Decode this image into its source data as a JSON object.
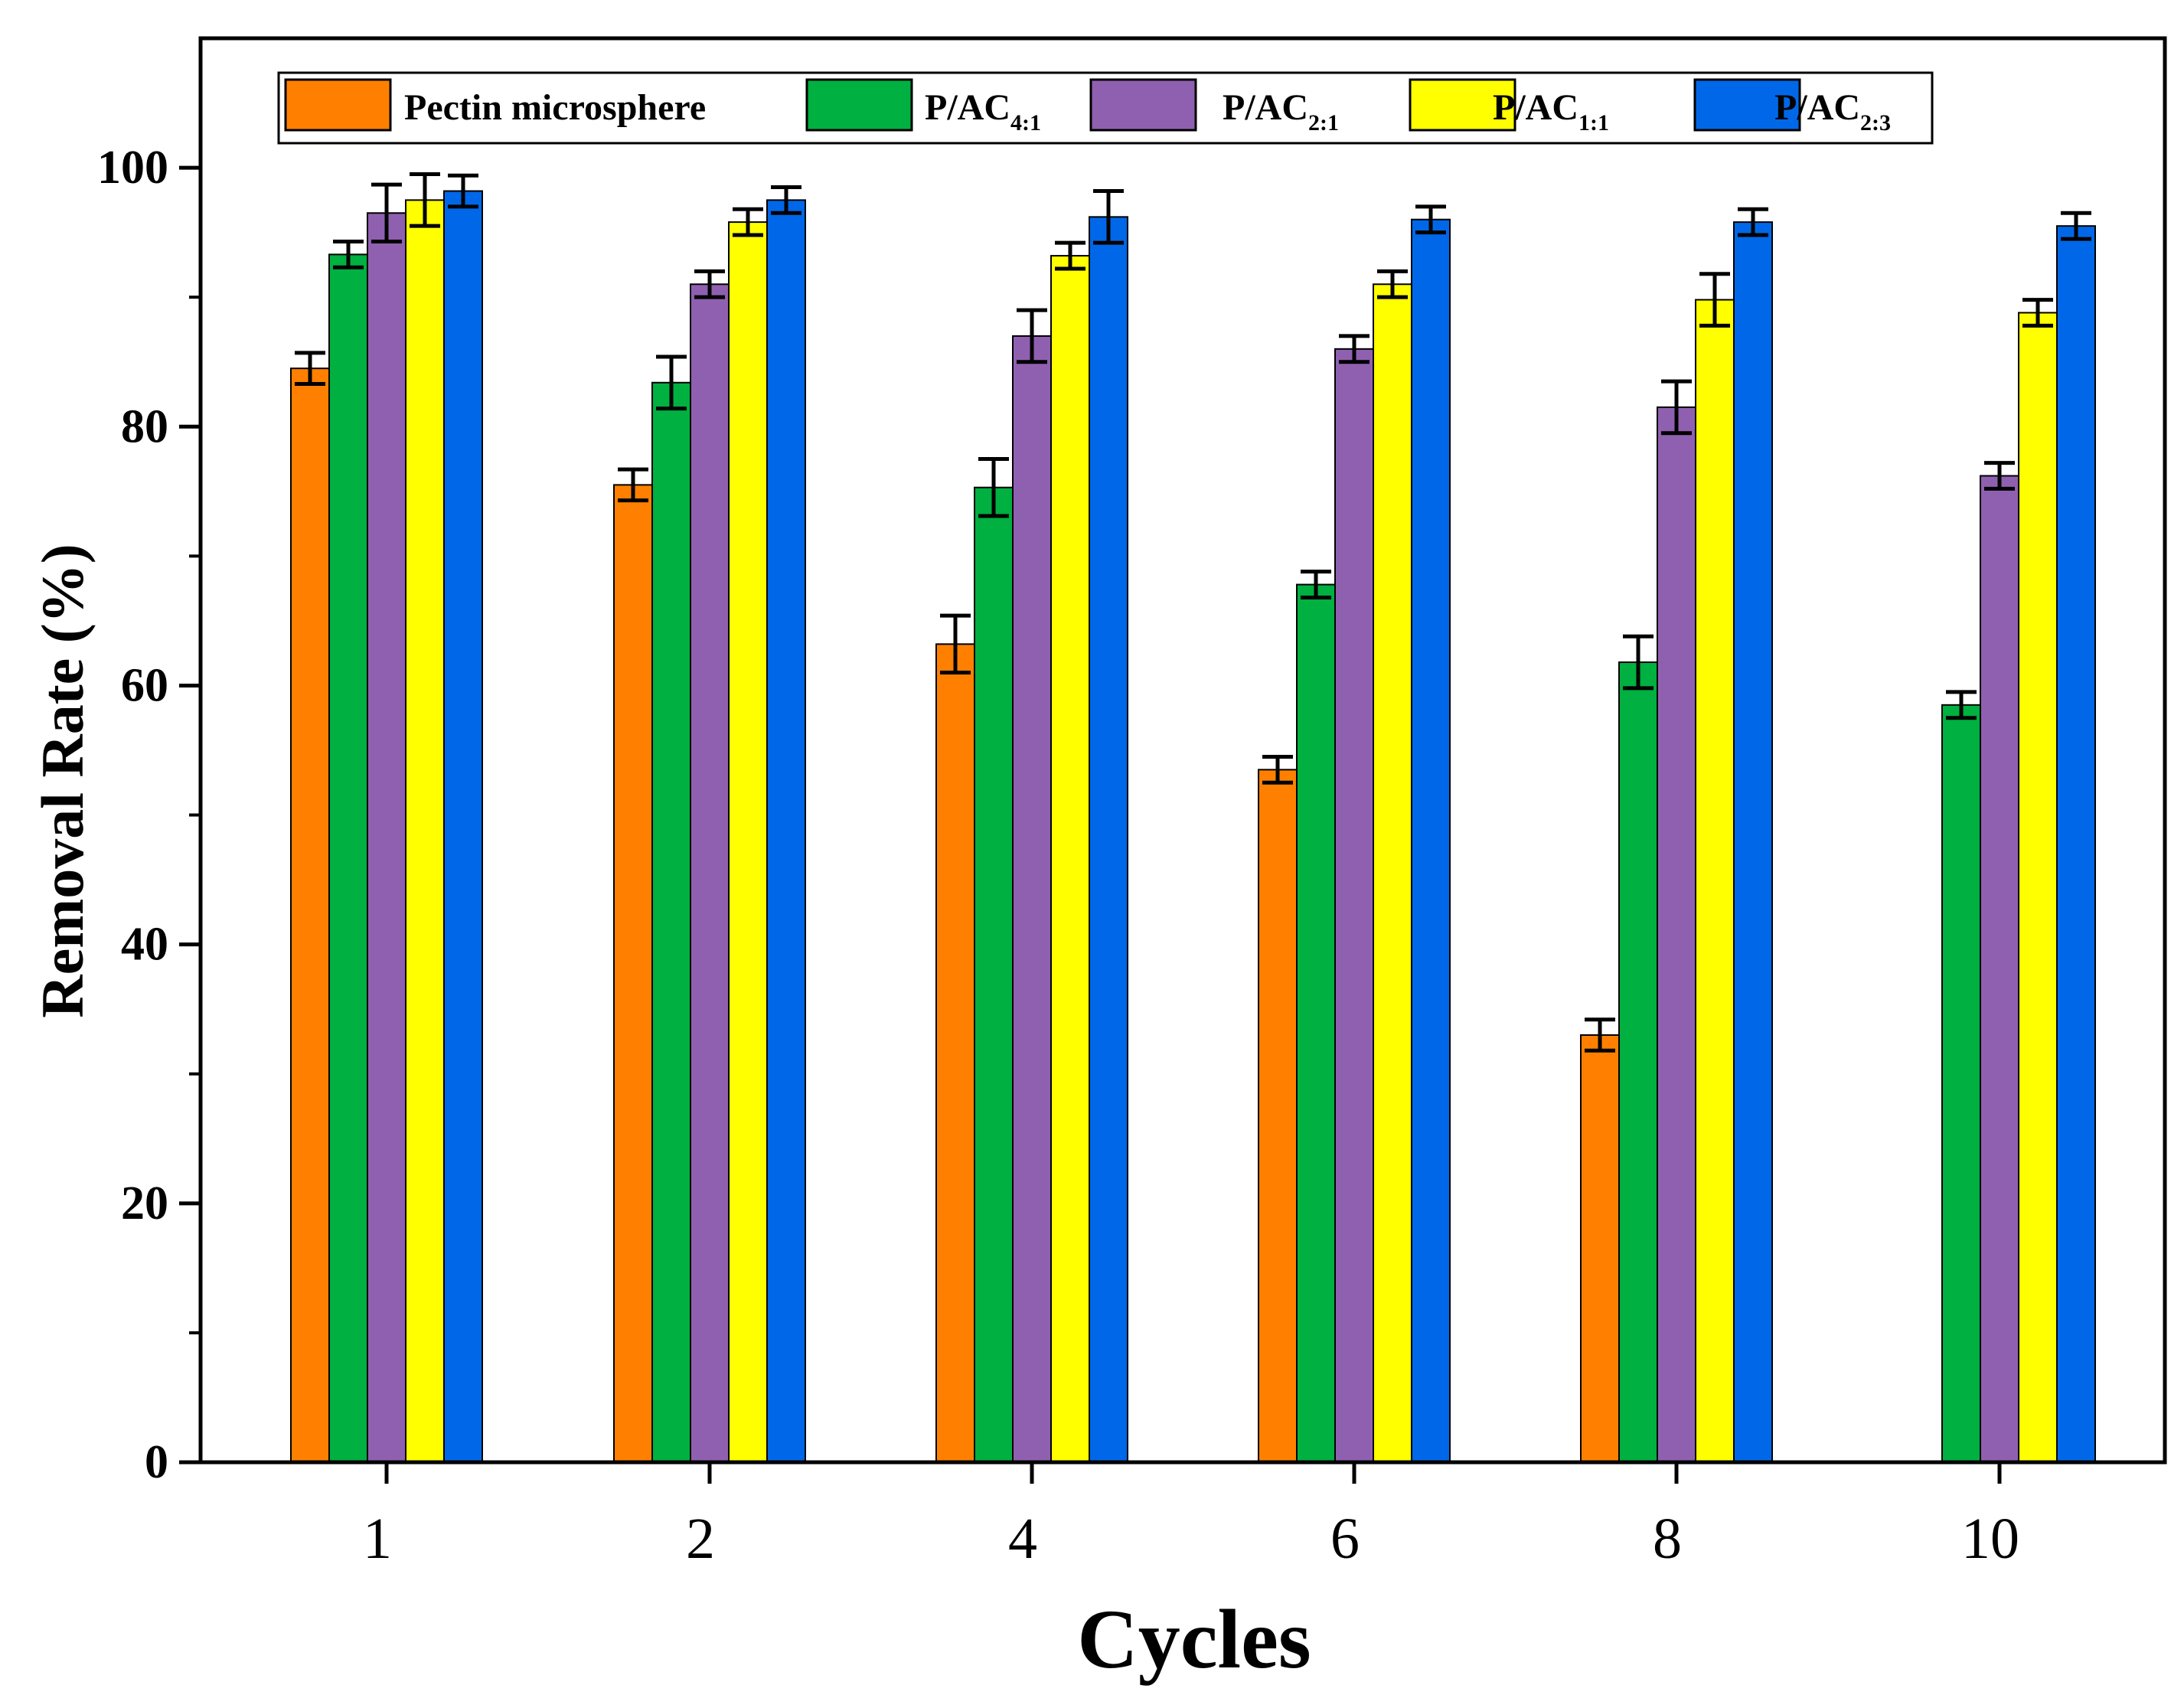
{
  "chart_data": {
    "type": "bar",
    "title": "",
    "xlabel": "Cycles",
    "ylabel": "Removal Rate (%)",
    "categories": [
      "1",
      "2",
      "4",
      "6",
      "8",
      "10"
    ],
    "ylim": [
      0,
      110
    ],
    "yticks": [
      0,
      20,
      40,
      60,
      80,
      100
    ],
    "legend_position": "top",
    "series": [
      {
        "name": "Pectin microsphere",
        "label_main": "Pectin microsphere",
        "label_sub": "",
        "color": "#ff8000",
        "values": [
          84.5,
          75.5,
          63.2,
          53.5,
          33.0,
          null
        ],
        "errors": [
          1.2,
          1.2,
          2.2,
          1.0,
          1.2,
          null
        ]
      },
      {
        "name": "P/AC4:1",
        "label_main": "P/AC",
        "label_sub": "4:1",
        "color": "#00b040",
        "values": [
          93.3,
          83.4,
          75.3,
          67.8,
          61.8,
          58.5
        ],
        "errors": [
          1.0,
          2.0,
          2.2,
          1.0,
          2.0,
          1.0
        ]
      },
      {
        "name": "P/AC2:1",
        "label_main": "P/AC",
        "label_sub": "2:1",
        "color": "#9060b0",
        "values": [
          96.5,
          91.0,
          87.0,
          86.0,
          81.5,
          76.2
        ],
        "errors": [
          2.2,
          1.0,
          2.0,
          1.0,
          2.0,
          1.0
        ]
      },
      {
        "name": "P/AC1:1",
        "label_main": "P/AC",
        "label_sub": "1:1",
        "color": "#ffff00",
        "values": [
          97.5,
          95.8,
          93.2,
          91.0,
          89.8,
          88.8
        ],
        "errors": [
          2.0,
          1.0,
          1.0,
          1.0,
          2.0,
          1.0
        ]
      },
      {
        "name": "P/AC2:3",
        "label_main": "P/AC",
        "label_sub": "2:3",
        "color": "#0068e8",
        "values": [
          98.2,
          97.5,
          96.2,
          96.0,
          95.8,
          95.5
        ],
        "errors": [
          1.2,
          1.0,
          2.0,
          1.0,
          1.0,
          1.0
        ]
      }
    ]
  }
}
